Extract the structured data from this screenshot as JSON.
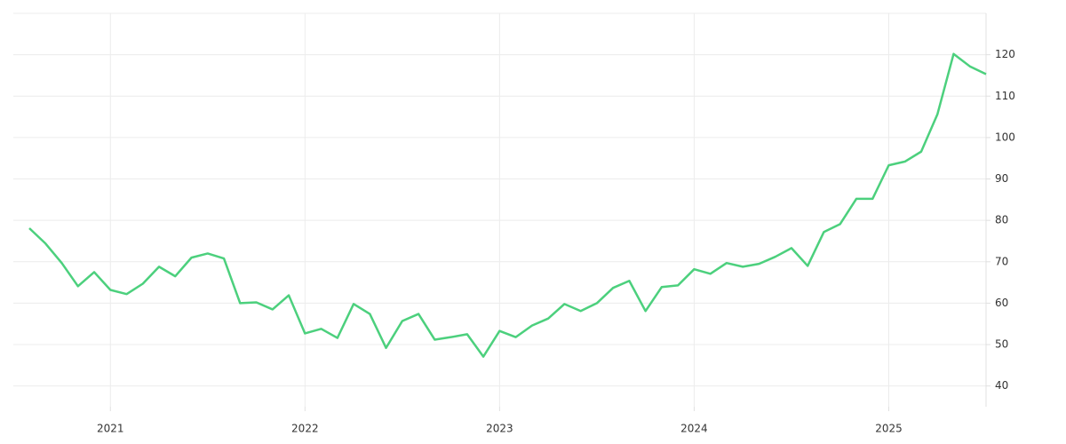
{
  "chart_data": {
    "type": "line",
    "categories": [
      null,
      null,
      null,
      null,
      null,
      "2021",
      null,
      null,
      null,
      null,
      null,
      null,
      null,
      null,
      null,
      null,
      null,
      "2022",
      null,
      null,
      null,
      null,
      null,
      null,
      null,
      null,
      null,
      null,
      null,
      "2023",
      null,
      null,
      null,
      null,
      null,
      null,
      null,
      null,
      null,
      null,
      null,
      "2024",
      null,
      null,
      null,
      null,
      null,
      null,
      null,
      null,
      null,
      null,
      null,
      "2025",
      null,
      null,
      null,
      null,
      null,
      null
    ],
    "series": [
      {
        "color": "#4cd07d",
        "values": [
          78.1,
          74.4,
          69.7,
          64.1,
          67.5,
          63.2,
          62.2,
          64.7,
          68.8,
          66.5,
          71.0,
          72.0,
          70.8,
          60.0,
          60.2,
          58.5,
          61.9,
          52.7,
          53.8,
          51.6,
          59.8,
          57.4,
          49.2,
          55.7,
          57.4,
          51.2,
          51.8,
          52.5,
          47.1,
          53.3,
          51.8,
          54.6,
          56.3,
          59.8,
          58.1,
          60.0,
          63.7,
          65.4,
          58.1,
          63.9,
          64.3,
          68.2,
          67.1,
          69.7,
          68.8,
          69.5,
          71.2,
          73.3,
          69.0,
          77.2,
          79.1,
          85.2,
          85.2,
          93.3,
          94.2,
          96.6,
          105.6,
          120.2,
          117.2,
          115.3
        ]
      }
    ],
    "ylim": [
      35,
      130
    ],
    "yticks": [
      40,
      50,
      60,
      70,
      80,
      90,
      100,
      110,
      120
    ],
    "grid": true,
    "y_axis_side": "right"
  }
}
